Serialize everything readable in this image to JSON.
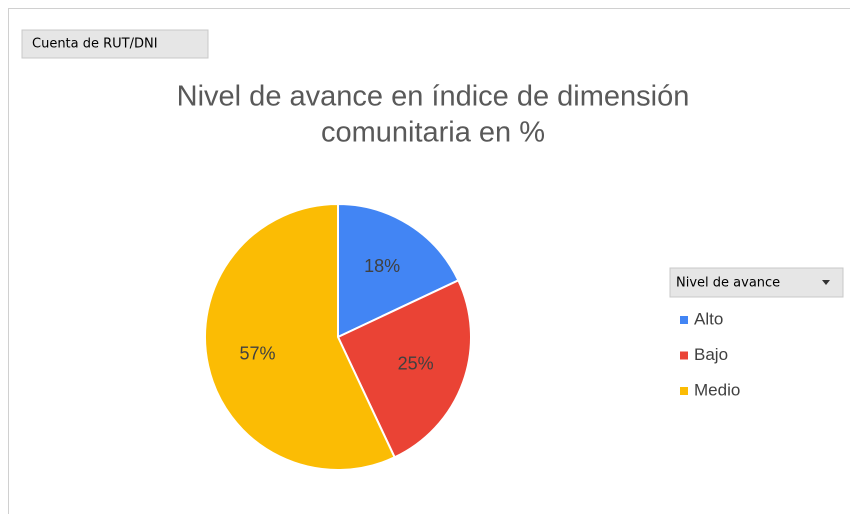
{
  "chart_data": {
    "type": "pie",
    "field_button": "Cuenta de RUT/DNI",
    "title": [
      "Nivel de avance en índice de dimensión",
      "comunitaria en %"
    ],
    "legend_title": "Nivel de avance",
    "legend": "right",
    "categories": [
      "Alto",
      "Bajo",
      "Medio"
    ],
    "values": [
      18,
      25,
      57
    ],
    "value_labels": [
      "18%",
      "25%",
      "57%"
    ],
    "colors": [
      "#4285f4",
      "#ea4335",
      "#fbbc04"
    ]
  }
}
